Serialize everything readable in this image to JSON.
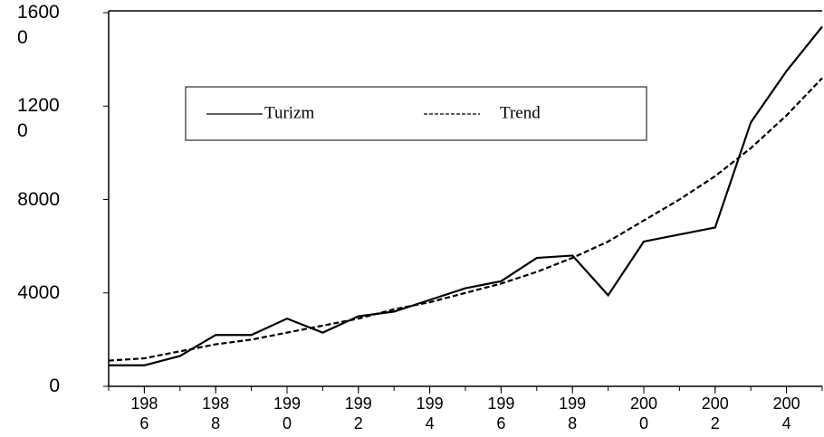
{
  "chart_data": {
    "type": "line",
    "x": [
      1985,
      1986,
      1987,
      1988,
      1989,
      1990,
      1991,
      1992,
      1993,
      1994,
      1995,
      1996,
      1997,
      1998,
      1999,
      2000,
      2001,
      2002,
      2003,
      2004,
      2005
    ],
    "series": [
      {
        "name": "Turizm",
        "color": "#000000",
        "dash": "solid",
        "values": [
          900,
          900,
          1300,
          2200,
          2200,
          2900,
          2300,
          3000,
          3200,
          3700,
          4200,
          4500,
          5500,
          5600,
          3900,
          6200,
          6500,
          6800,
          11300,
          13500,
          15400
        ]
      },
      {
        "name": "Trend",
        "color": "#000000",
        "dash": "dashed",
        "values": [
          1100,
          1200,
          1500,
          1800,
          2000,
          2300,
          2600,
          2900,
          3300,
          3600,
          4000,
          4400,
          4900,
          5500,
          6200,
          7100,
          8000,
          9000,
          10200,
          11600,
          13200
        ]
      }
    ],
    "xlim": [
      1985,
      2005
    ],
    "xticks": [
      1986,
      1988,
      1990,
      1992,
      1994,
      1996,
      1998,
      2000,
      2002,
      2004
    ],
    "ylim": [
      0,
      16000
    ],
    "yticks": [
      0,
      4000,
      8000,
      12000,
      16000
    ],
    "grid": false
  }
}
